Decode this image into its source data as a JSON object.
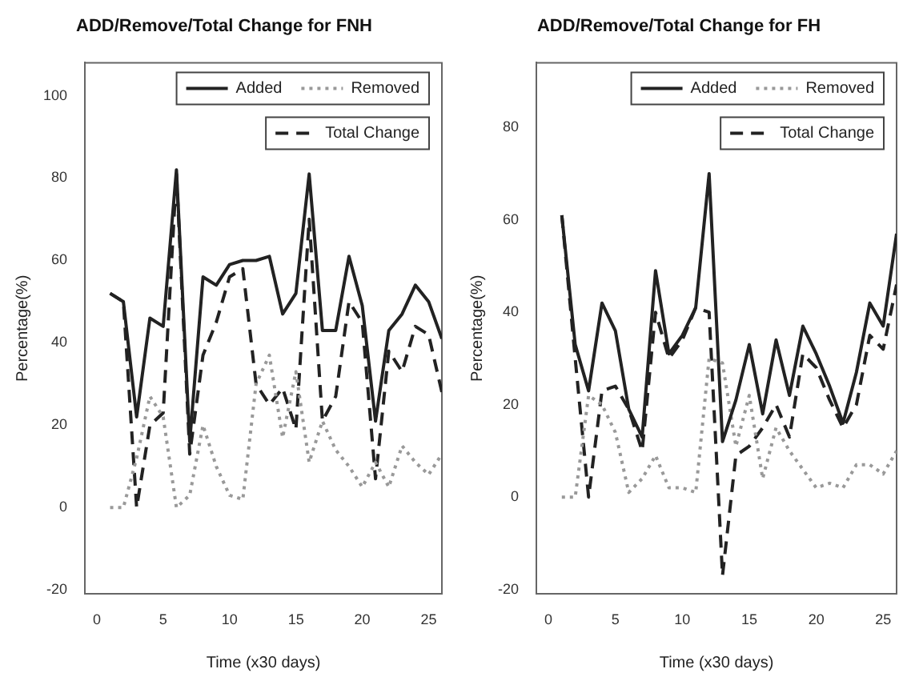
{
  "chart_data": [
    {
      "type": "line",
      "title": "ADD/Remove/Total Change for FNH",
      "xlabel": "Time (x30 days)",
      "ylabel": "Percentage(%)",
      "x": [
        1,
        2,
        3,
        4,
        5,
        6,
        7,
        8,
        9,
        10,
        11,
        12,
        13,
        14,
        15,
        16,
        17,
        18,
        19,
        20,
        21,
        22,
        23,
        24,
        25,
        26
      ],
      "xlim": [
        -0.9,
        26
      ],
      "xticks": [
        0,
        5,
        10,
        15,
        20,
        25
      ],
      "ylim": [
        -21,
        108
      ],
      "yticks": [
        -20,
        0,
        20,
        40,
        60,
        80,
        100
      ],
      "grid": false,
      "legend": "top right",
      "marker": "none",
      "series": [
        {
          "name": "Added",
          "color": "#222222",
          "line_style": "solid",
          "values": [
            52,
            50,
            22,
            46,
            44,
            82,
            16,
            56,
            54,
            59,
            60,
            60,
            61,
            47,
            52,
            81,
            43,
            43,
            61,
            49,
            21,
            43,
            47,
            54,
            50,
            41
          ]
        },
        {
          "name": "Removed",
          "color": "#999999",
          "line_style": "dotted",
          "values": [
            0,
            0,
            12,
            27,
            22,
            0,
            3,
            20,
            10,
            3,
            2,
            30,
            37,
            17,
            33,
            11,
            21,
            14,
            10,
            5,
            11,
            5,
            15,
            11,
            8,
            13
          ]
        },
        {
          "name": "Total Change",
          "color": "#222222",
          "line_style": "dashed",
          "values": [
            52,
            50,
            0,
            20,
            23,
            81,
            13,
            37,
            45,
            56,
            58,
            30,
            25,
            29,
            19,
            70,
            21,
            27,
            50,
            45,
            7,
            38,
            33,
            44,
            42,
            28
          ]
        }
      ]
    },
    {
      "type": "line",
      "title": "ADD/Remove/Total Change for FH",
      "xlabel": "Time (x30 days)",
      "ylabel": "Percentage(%)",
      "x": [
        1,
        2,
        3,
        4,
        5,
        6,
        7,
        8,
        9,
        10,
        11,
        12,
        13,
        14,
        15,
        16,
        17,
        18,
        19,
        20,
        21,
        22,
        23,
        24,
        25,
        26
      ],
      "xlim": [
        -0.9,
        26
      ],
      "xticks": [
        0,
        5,
        10,
        15,
        20,
        25
      ],
      "ylim": [
        -21,
        94
      ],
      "yticks": [
        -20,
        0,
        20,
        40,
        60,
        80
      ],
      "grid": false,
      "legend": "top right",
      "marker": "none",
      "series": [
        {
          "name": "Added",
          "color": "#222222",
          "line_style": "solid",
          "values": [
            61,
            33,
            23,
            42,
            36,
            19,
            13,
            49,
            31,
            35,
            41,
            70,
            12,
            21,
            33,
            18,
            34,
            22,
            37,
            31,
            24,
            16,
            27,
            42,
            37,
            57
          ]
        },
        {
          "name": "Removed",
          "color": "#999999",
          "line_style": "dotted",
          "values": [
            0,
            0,
            22,
            20,
            14,
            1,
            4,
            9,
            2,
            2,
            1,
            30,
            29,
            11,
            22,
            4,
            15,
            10,
            6,
            2,
            3,
            2,
            7,
            7,
            5,
            10
          ]
        },
        {
          "name": "Total Change",
          "color": "#222222",
          "line_style": "dashed",
          "values": [
            61,
            30,
            0,
            23,
            24,
            19,
            10,
            40,
            30,
            34,
            41,
            40,
            -17,
            9,
            11,
            15,
            20,
            13,
            31,
            28,
            21,
            15,
            20,
            35,
            32,
            46
          ]
        }
      ]
    }
  ]
}
